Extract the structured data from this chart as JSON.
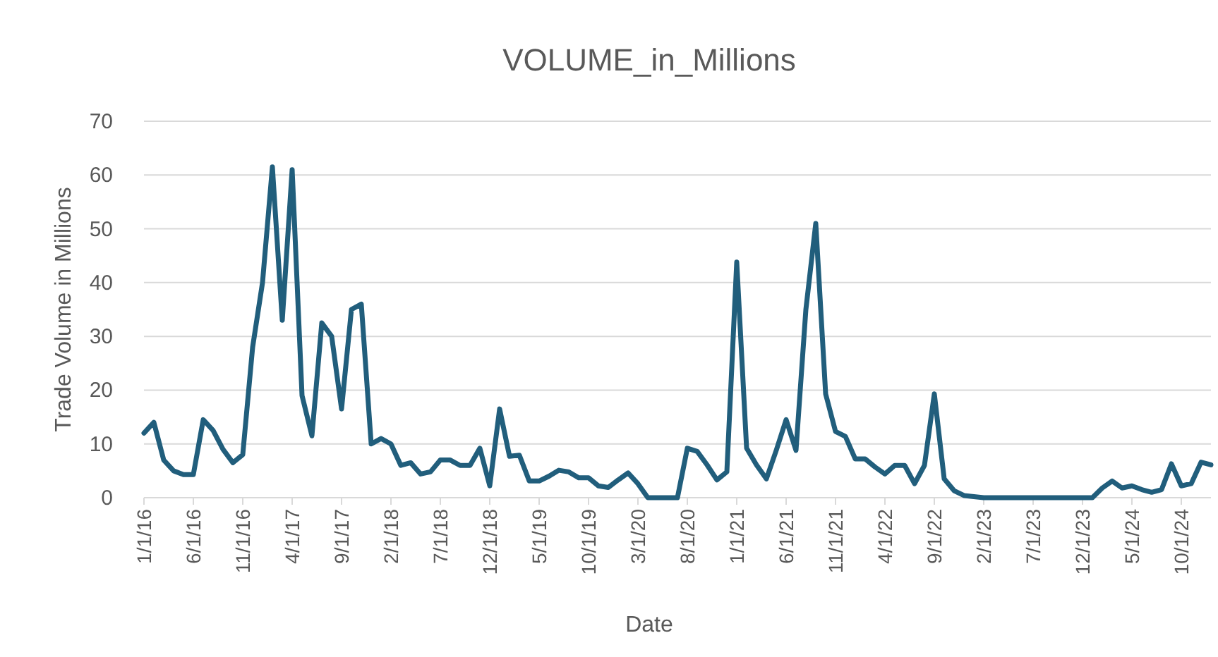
{
  "chart_data": {
    "type": "line",
    "title": "VOLUME_in_Millions",
    "xlabel": "Date",
    "ylabel": "Trade Volume in Millions",
    "categories": [
      "1/1/16",
      null,
      null,
      null,
      null,
      "6/1/16",
      null,
      null,
      null,
      null,
      "11/1/16",
      null,
      null,
      null,
      null,
      "4/1/17",
      null,
      null,
      null,
      null,
      "9/1/17",
      null,
      null,
      null,
      null,
      "2/1/18",
      null,
      null,
      null,
      null,
      "7/1/18",
      null,
      null,
      null,
      null,
      "12/1/18",
      null,
      null,
      null,
      null,
      "5/1/19",
      null,
      null,
      null,
      null,
      "10/1/19",
      null,
      null,
      null,
      null,
      "3/1/20",
      null,
      null,
      null,
      null,
      "8/1/20",
      null,
      null,
      null,
      null,
      "1/1/21",
      null,
      null,
      null,
      null,
      "6/1/21",
      null,
      null,
      null,
      null,
      "11/1/21",
      null,
      null,
      null,
      null,
      "4/1/22",
      null,
      null,
      null,
      null,
      "9/1/22",
      null,
      null,
      null,
      null,
      "2/1/23",
      null,
      null,
      null,
      null,
      "7/1/23",
      null,
      null,
      null,
      null,
      "12/1/23",
      null,
      null,
      null,
      null,
      "5/1/24",
      null,
      null,
      null,
      null,
      "10/1/24",
      null,
      null,
      null
    ],
    "series": [
      {
        "color": "#215e7c",
        "values": [
          12,
          14,
          7,
          5,
          4.3,
          4.3,
          14.5,
          12.5,
          9,
          6.5,
          8,
          28,
          40,
          61.5,
          33,
          61,
          19,
          11.5,
          32.5,
          30,
          16.5,
          35,
          36,
          10,
          11,
          10,
          6,
          6.5,
          4.4,
          4.8,
          7,
          7,
          6,
          6,
          9.2,
          2.2,
          16.5,
          7.7,
          7.9,
          3.1,
          3.1,
          4,
          5.1,
          4.8,
          3.7,
          3.7,
          2.2,
          1.9,
          3.3,
          4.6,
          2.6,
          0,
          0,
          0,
          0,
          9.2,
          8.6,
          6.1,
          3.3,
          4.8,
          43.8,
          9.2,
          6.1,
          3.5,
          8.8,
          14.5,
          8.8,
          35,
          51,
          19.3,
          12.3,
          11.4,
          7.2,
          7.2,
          5.7,
          4.4,
          6,
          6,
          2.6,
          6,
          19.3,
          3.5,
          1.3,
          0.4,
          0.2,
          0,
          0,
          0,
          0,
          0,
          0,
          0,
          0,
          0,
          0,
          0,
          0,
          1.8,
          3.1,
          1.8,
          2.2,
          1.5,
          1,
          1.5,
          6.3,
          2.2,
          2.6,
          6.6,
          6.1
        ]
      }
    ],
    "ylim": [
      0,
      70
    ],
    "yticks": [
      0,
      10,
      20,
      30,
      40,
      50,
      60,
      70
    ],
    "grid": "y",
    "marker": "none",
    "line_style": "solid"
  }
}
